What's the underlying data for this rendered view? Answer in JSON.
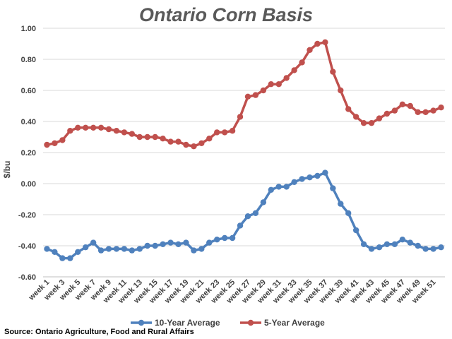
{
  "chart_data": {
    "type": "line",
    "title": "Ontario Corn Basis",
    "ylabel": "$/bu",
    "xlabel": "",
    "ylim": [
      -0.6,
      1.0
    ],
    "y_ticks": [
      "1.00",
      "0.80",
      "0.60",
      "0.40",
      "0.20",
      "0.00",
      "-0.20",
      "-0.40",
      "-0.60"
    ],
    "y_tick_values": [
      1.0,
      0.8,
      0.6,
      0.4,
      0.2,
      0.0,
      -0.2,
      -0.4,
      -0.6
    ],
    "x_labeled_ticks": [
      "week 1",
      "week 3",
      "week 5",
      "week 7",
      "week 9",
      "week 11",
      "week 13",
      "week 15",
      "week 17",
      "week 19",
      "week 21",
      "week 23",
      "week 25",
      "week 27",
      "week 29",
      "week 31",
      "week 33",
      "week 35",
      "week 37",
      "week 39",
      "week 41",
      "week 43",
      "week 45",
      "week 47",
      "week 49",
      "week 51"
    ],
    "x": [
      1,
      2,
      3,
      4,
      5,
      6,
      7,
      8,
      9,
      10,
      11,
      12,
      13,
      14,
      15,
      16,
      17,
      18,
      19,
      20,
      21,
      22,
      23,
      24,
      25,
      26,
      27,
      28,
      29,
      30,
      31,
      32,
      33,
      34,
      35,
      36,
      37,
      38,
      39,
      40,
      41,
      42,
      43,
      44,
      45,
      46,
      47,
      48,
      49,
      50,
      51,
      52
    ],
    "grid": true,
    "legend_position": "bottom",
    "series": [
      {
        "name": "10-Year Average",
        "color": "#4f81bd",
        "values": [
          -0.42,
          -0.44,
          -0.48,
          -0.48,
          -0.44,
          -0.41,
          -0.38,
          -0.43,
          -0.42,
          -0.42,
          -0.42,
          -0.43,
          -0.42,
          -0.4,
          -0.4,
          -0.39,
          -0.38,
          -0.39,
          -0.38,
          -0.43,
          -0.42,
          -0.38,
          -0.36,
          -0.35,
          -0.35,
          -0.27,
          -0.21,
          -0.19,
          -0.12,
          -0.04,
          -0.02,
          -0.02,
          0.01,
          0.03,
          0.04,
          0.05,
          0.07,
          -0.03,
          -0.13,
          -0.19,
          -0.3,
          -0.39,
          -0.42,
          -0.41,
          -0.39,
          -0.39,
          -0.36,
          -0.38,
          -0.4,
          -0.42,
          -0.42,
          -0.41
        ]
      },
      {
        "name": "5-Year Average",
        "color": "#c0504d",
        "values": [
          0.25,
          0.26,
          0.28,
          0.34,
          0.36,
          0.36,
          0.36,
          0.36,
          0.35,
          0.34,
          0.33,
          0.32,
          0.3,
          0.3,
          0.3,
          0.29,
          0.27,
          0.27,
          0.25,
          0.24,
          0.26,
          0.29,
          0.33,
          0.33,
          0.34,
          0.43,
          0.56,
          0.57,
          0.6,
          0.64,
          0.64,
          0.68,
          0.73,
          0.78,
          0.86,
          0.9,
          0.91,
          0.72,
          0.6,
          0.48,
          0.43,
          0.39,
          0.39,
          0.42,
          0.45,
          0.47,
          0.51,
          0.5,
          0.46,
          0.46,
          0.47,
          0.49
        ]
      }
    ]
  },
  "source": "Source: Ontario Agriculture, Food and Rural Affairs"
}
